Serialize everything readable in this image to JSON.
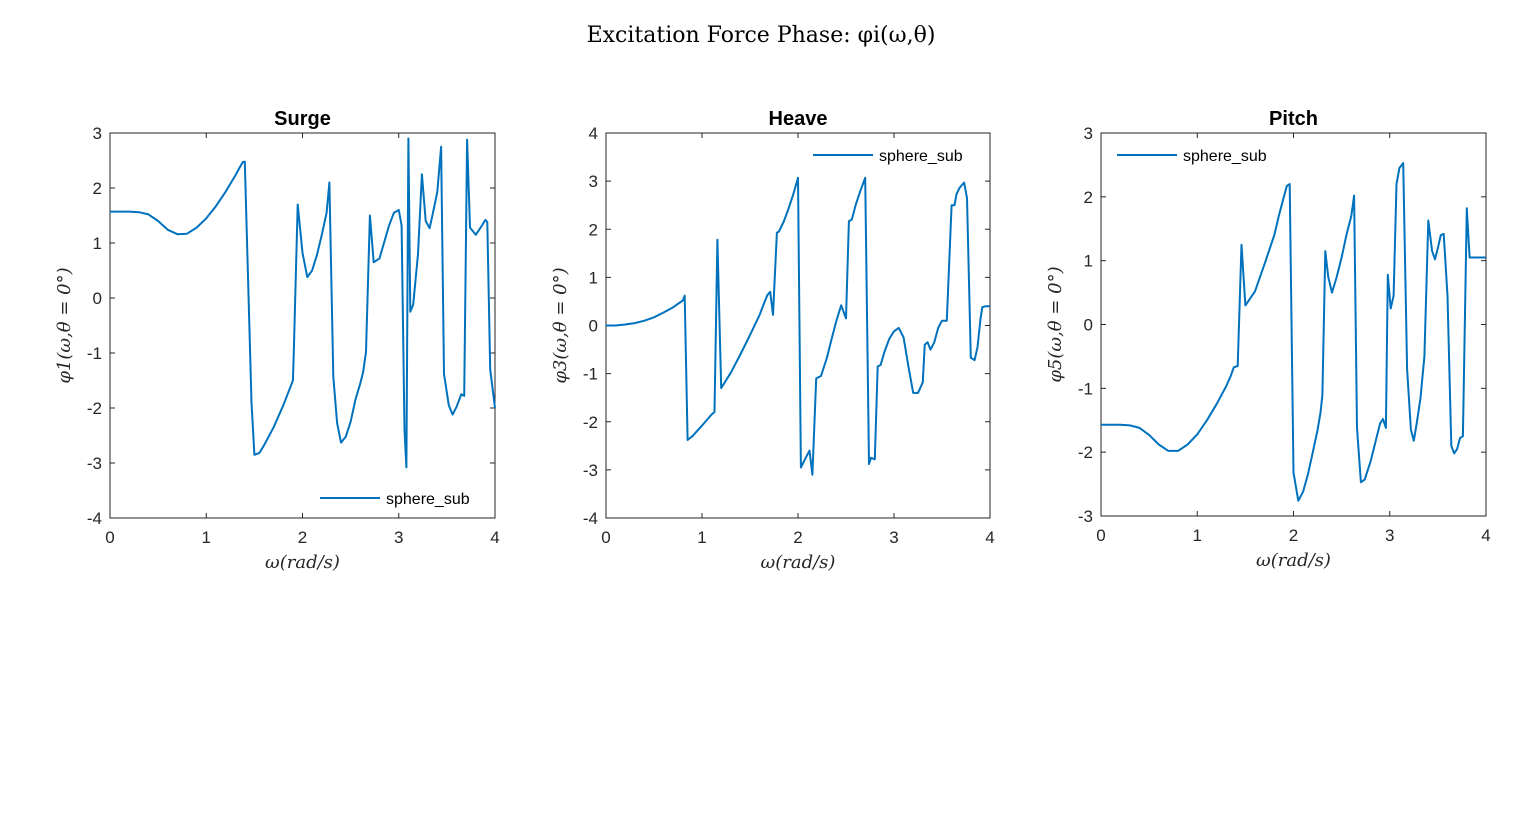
{
  "figure_title": "Excitation Force Phase: φi(ω,θ)",
  "series_color": "#0072BD",
  "chart_data": [
    {
      "type": "line",
      "title": "Surge",
      "xlabel": "ω(rad/s)",
      "ylabel": "φ1(ω,θ = 0°)",
      "xlim": [
        0,
        4
      ],
      "ylim": [
        -4,
        3
      ],
      "xticks": [
        0,
        1,
        2,
        3,
        4
      ],
      "yticks": [
        -4,
        -3,
        -2,
        -1,
        0,
        1,
        2,
        3
      ],
      "legend": "bottom-right",
      "series": [
        {
          "name": "sphere_sub",
          "x": [
            0,
            0.1,
            0.2,
            0.3,
            0.4,
            0.5,
            0.6,
            0.7,
            0.8,
            0.9,
            1.0,
            1.1,
            1.2,
            1.3,
            1.35,
            1.38,
            1.4,
            1.47,
            1.5,
            1.55,
            1.6,
            1.7,
            1.8,
            1.9,
            1.91,
            1.95,
            2.0,
            2.05,
            2.1,
            2.15,
            2.2,
            2.25,
            2.28,
            2.32,
            2.36,
            2.4,
            2.45,
            2.5,
            2.55,
            2.6,
            2.63,
            2.66,
            2.7,
            2.74,
            2.8,
            2.85,
            2.9,
            2.95,
            3.0,
            3.03,
            3.06,
            3.08,
            3.1,
            3.12,
            3.15,
            3.2,
            3.24,
            3.28,
            3.32,
            3.35,
            3.4,
            3.44,
            3.47,
            3.52,
            3.56,
            3.6,
            3.65,
            3.68,
            3.71,
            3.74,
            3.8,
            3.85,
            3.9,
            3.92,
            3.95,
            4.0
          ],
          "y": [
            1.57,
            1.57,
            1.57,
            1.56,
            1.52,
            1.4,
            1.24,
            1.16,
            1.17,
            1.28,
            1.45,
            1.67,
            1.93,
            2.22,
            2.38,
            2.47,
            2.48,
            -1.9,
            -2.85,
            -2.82,
            -2.68,
            -2.35,
            -1.95,
            -1.5,
            -0.98,
            1.7,
            0.82,
            0.38,
            0.5,
            0.78,
            1.15,
            1.55,
            2.1,
            -1.43,
            -2.27,
            -2.63,
            -2.52,
            -2.25,
            -1.85,
            -1.55,
            -1.35,
            -0.98,
            1.5,
            0.65,
            0.72,
            1.02,
            1.32,
            1.55,
            1.6,
            1.32,
            -2.4,
            -3.08,
            2.9,
            -0.25,
            -0.12,
            0.8,
            2.25,
            1.4,
            1.27,
            1.5,
            1.93,
            2.75,
            -1.38,
            -1.95,
            -2.12,
            -1.98,
            -1.75,
            -1.78,
            2.88,
            1.28,
            1.15,
            1.28,
            1.42,
            1.38,
            -1.3,
            -2.0
          ]
        }
      ]
    },
    {
      "type": "line",
      "title": "Heave",
      "xlabel": "ω(rad/s)",
      "ylabel": "φ3(ω,θ = 0°)",
      "xlim": [
        0,
        4
      ],
      "ylim": [
        -4,
        4
      ],
      "xticks": [
        0,
        1,
        2,
        3,
        4
      ],
      "yticks": [
        -4,
        -3,
        -2,
        -1,
        0,
        1,
        2,
        3,
        4
      ],
      "legend": "top-right",
      "series": [
        {
          "name": "sphere_sub",
          "x": [
            0,
            0.1,
            0.2,
            0.3,
            0.4,
            0.5,
            0.6,
            0.7,
            0.8,
            0.82,
            0.85,
            0.9,
            1.0,
            1.1,
            1.13,
            1.16,
            1.2,
            1.3,
            1.4,
            1.5,
            1.6,
            1.65,
            1.68,
            1.71,
            1.74,
            1.78,
            1.8,
            1.85,
            1.9,
            1.95,
            2.0,
            2.03,
            2.08,
            2.12,
            2.15,
            2.19,
            2.24,
            2.3,
            2.35,
            2.4,
            2.45,
            2.5,
            2.53,
            2.56,
            2.6,
            2.65,
            2.7,
            2.74,
            2.76,
            2.8,
            2.83,
            2.86,
            2.9,
            2.95,
            3.0,
            3.05,
            3.1,
            3.15,
            3.2,
            3.25,
            3.3,
            3.32,
            3.35,
            3.38,
            3.42,
            3.46,
            3.5,
            3.55,
            3.6,
            3.63,
            3.65,
            3.68,
            3.7,
            3.73,
            3.76,
            3.8,
            3.84,
            3.87,
            3.9,
            3.92,
            3.95,
            4.0
          ],
          "y": [
            0.0,
            0.0,
            0.02,
            0.05,
            0.1,
            0.17,
            0.27,
            0.38,
            0.52,
            0.62,
            -2.38,
            -2.3,
            -2.08,
            -1.85,
            -1.8,
            1.78,
            -1.3,
            -0.98,
            -0.6,
            -0.2,
            0.22,
            0.48,
            0.63,
            0.7,
            0.22,
            1.93,
            1.95,
            2.15,
            2.42,
            2.72,
            3.07,
            -2.95,
            -2.75,
            -2.6,
            -3.1,
            -1.1,
            -1.05,
            -0.68,
            -0.28,
            0.1,
            0.42,
            0.15,
            2.17,
            2.2,
            2.5,
            2.8,
            3.07,
            -2.88,
            -2.75,
            -2.78,
            -0.85,
            -0.82,
            -0.55,
            -0.28,
            -0.12,
            -0.05,
            -0.25,
            -0.85,
            -1.4,
            -1.4,
            -1.18,
            -0.4,
            -0.35,
            -0.5,
            -0.35,
            -0.05,
            0.1,
            0.1,
            2.5,
            2.5,
            2.72,
            2.85,
            2.9,
            2.97,
            2.65,
            -0.67,
            -0.72,
            -0.45,
            0.12,
            0.38,
            0.4,
            0.4
          ]
        }
      ]
    },
    {
      "type": "line",
      "title": "Pitch",
      "xlabel": "ω(rad/s)",
      "ylabel": "φ5(ω,θ = 0°)",
      "xlim": [
        0,
        4
      ],
      "ylim": [
        -3,
        3
      ],
      "xticks": [
        0,
        1,
        2,
        3,
        4
      ],
      "yticks": [
        -3,
        -2,
        -1,
        0,
        1,
        2,
        3
      ],
      "legend": "top-left",
      "series": [
        {
          "name": "sphere_sub",
          "x": [
            0,
            0.1,
            0.2,
            0.3,
            0.4,
            0.5,
            0.6,
            0.7,
            0.8,
            0.9,
            1.0,
            1.1,
            1.2,
            1.3,
            1.35,
            1.38,
            1.42,
            1.46,
            1.5,
            1.6,
            1.7,
            1.8,
            1.85,
            1.9,
            1.93,
            1.96,
            2.0,
            2.05,
            2.1,
            2.15,
            2.2,
            2.25,
            2.28,
            2.3,
            2.33,
            2.36,
            2.4,
            2.45,
            2.5,
            2.55,
            2.6,
            2.63,
            2.66,
            2.7,
            2.74,
            2.8,
            2.85,
            2.9,
            2.93,
            2.96,
            2.98,
            3.01,
            3.04,
            3.07,
            3.1,
            3.14,
            3.18,
            3.22,
            3.25,
            3.28,
            3.32,
            3.36,
            3.4,
            3.44,
            3.47,
            3.5,
            3.53,
            3.56,
            3.6,
            3.64,
            3.67,
            3.7,
            3.73,
            3.76,
            3.8,
            3.83,
            3.86,
            3.89,
            3.92,
            3.95,
            3.98,
            4.0
          ],
          "y": [
            -1.57,
            -1.57,
            -1.57,
            -1.58,
            -1.62,
            -1.73,
            -1.88,
            -1.98,
            -1.98,
            -1.88,
            -1.72,
            -1.5,
            -1.25,
            -0.97,
            -0.8,
            -0.67,
            -0.65,
            1.25,
            0.3,
            0.52,
            0.95,
            1.4,
            1.72,
            2.0,
            2.17,
            2.2,
            -2.32,
            -2.76,
            -2.62,
            -2.35,
            -2.0,
            -1.65,
            -1.38,
            -1.1,
            1.15,
            0.75,
            0.5,
            0.75,
            1.05,
            1.4,
            1.7,
            2.02,
            -1.62,
            -2.47,
            -2.43,
            -2.15,
            -1.85,
            -1.55,
            -1.48,
            -1.62,
            0.78,
            0.25,
            0.45,
            2.2,
            2.45,
            2.53,
            -0.7,
            -1.65,
            -1.82,
            -1.55,
            -1.15,
            -0.5,
            1.63,
            1.15,
            1.02,
            1.2,
            1.4,
            1.42,
            0.45,
            -1.9,
            -2.02,
            -1.95,
            -1.78,
            -1.75,
            1.82,
            1.05,
            1.05,
            1.05,
            1.05,
            1.05,
            1.05,
            1.05
          ]
        }
      ]
    }
  ]
}
